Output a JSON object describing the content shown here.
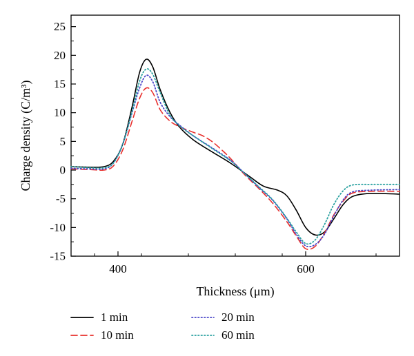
{
  "chart_data": {
    "type": "line",
    "title": "",
    "xlabel": "Thickness (μm)",
    "ylabel": "Charge density (C/m³)",
    "xlim": [
      350,
      700
    ],
    "ylim": [
      -15,
      27
    ],
    "x_ticks": [
      400,
      600
    ],
    "y_ticks": [
      -15,
      -10,
      -5,
      0,
      5,
      10,
      15,
      20,
      25
    ],
    "grid": false,
    "legend_position": "bottom",
    "series": [
      {
        "name": "1 min",
        "color": "#000000",
        "dash": "solid",
        "points": [
          [
            350,
            0.6
          ],
          [
            370,
            0.5
          ],
          [
            385,
            0.6
          ],
          [
            395,
            1.5
          ],
          [
            405,
            4.5
          ],
          [
            415,
            11
          ],
          [
            423,
            17
          ],
          [
            430,
            19.3
          ],
          [
            437,
            18
          ],
          [
            445,
            14
          ],
          [
            455,
            10.2
          ],
          [
            465,
            7.6
          ],
          [
            480,
            5.3
          ],
          [
            500,
            3.2
          ],
          [
            520,
            1.2
          ],
          [
            540,
            -1.1
          ],
          [
            555,
            -2.8
          ],
          [
            570,
            -3.5
          ],
          [
            580,
            -4.5
          ],
          [
            590,
            -7
          ],
          [
            600,
            -10
          ],
          [
            610,
            -11.3
          ],
          [
            620,
            -10.8
          ],
          [
            630,
            -8.5
          ],
          [
            640,
            -6
          ],
          [
            650,
            -4.6
          ],
          [
            665,
            -4.1
          ],
          [
            685,
            -4.1
          ],
          [
            700,
            -4.2
          ]
        ]
      },
      {
        "name": "10 min",
        "color": "#e8302d",
        "dash": "dashed",
        "points": [
          [
            350,
            0.2
          ],
          [
            370,
            0.1
          ],
          [
            385,
            0
          ],
          [
            395,
            0.7
          ],
          [
            405,
            3.5
          ],
          [
            415,
            8.5
          ],
          [
            423,
            12.5
          ],
          [
            430,
            14.3
          ],
          [
            437,
            13.5
          ],
          [
            445,
            10.5
          ],
          [
            455,
            8.6
          ],
          [
            465,
            7.6
          ],
          [
            480,
            6.6
          ],
          [
            490,
            6
          ],
          [
            500,
            5
          ],
          [
            510,
            3.6
          ],
          [
            520,
            2
          ],
          [
            535,
            -0.8
          ],
          [
            550,
            -3.2
          ],
          [
            565,
            -5.8
          ],
          [
            580,
            -9
          ],
          [
            590,
            -11.5
          ],
          [
            600,
            -13.7
          ],
          [
            610,
            -13.3
          ],
          [
            620,
            -11
          ],
          [
            630,
            -7.8
          ],
          [
            640,
            -5.4
          ],
          [
            650,
            -4
          ],
          [
            670,
            -3.7
          ],
          [
            700,
            -3.7
          ]
        ]
      },
      {
        "name": "20 min",
        "color": "#4a46c8",
        "dash": "dotted",
        "points": [
          [
            350,
            0.3
          ],
          [
            370,
            0.2
          ],
          [
            385,
            0.2
          ],
          [
            395,
            1.2
          ],
          [
            405,
            4.5
          ],
          [
            415,
            10
          ],
          [
            423,
            14.3
          ],
          [
            430,
            16.5
          ],
          [
            437,
            15.4
          ],
          [
            445,
            11.8
          ],
          [
            455,
            9.4
          ],
          [
            465,
            7.9
          ],
          [
            480,
            6
          ],
          [
            500,
            3.9
          ],
          [
            520,
            1.7
          ],
          [
            535,
            -0.6
          ],
          [
            550,
            -3
          ],
          [
            565,
            -5.3
          ],
          [
            580,
            -8.5
          ],
          [
            590,
            -11.2
          ],
          [
            600,
            -13.2
          ],
          [
            610,
            -13
          ],
          [
            620,
            -11.2
          ],
          [
            630,
            -8
          ],
          [
            640,
            -5.2
          ],
          [
            650,
            -3.8
          ],
          [
            670,
            -3.5
          ],
          [
            700,
            -3.4
          ]
        ]
      },
      {
        "name": "60 min",
        "color": "#2aa1a0",
        "dash": "dotted",
        "points": [
          [
            350,
            0.6
          ],
          [
            370,
            0.4
          ],
          [
            385,
            0.4
          ],
          [
            395,
            1.2
          ],
          [
            405,
            4.5
          ],
          [
            415,
            10.2
          ],
          [
            423,
            15.5
          ],
          [
            430,
            17.6
          ],
          [
            437,
            16.7
          ],
          [
            445,
            13.5
          ],
          [
            455,
            9.7
          ],
          [
            465,
            7.8
          ],
          [
            480,
            6
          ],
          [
            500,
            3.8
          ],
          [
            520,
            1.6
          ],
          [
            535,
            -0.6
          ],
          [
            550,
            -2.9
          ],
          [
            565,
            -5.2
          ],
          [
            580,
            -8.4
          ],
          [
            590,
            -10.8
          ],
          [
            600,
            -12.8
          ],
          [
            610,
            -12.2
          ],
          [
            620,
            -9.5
          ],
          [
            630,
            -6
          ],
          [
            640,
            -3.6
          ],
          [
            650,
            -2.6
          ],
          [
            670,
            -2.5
          ],
          [
            700,
            -2.5
          ]
        ]
      }
    ]
  }
}
